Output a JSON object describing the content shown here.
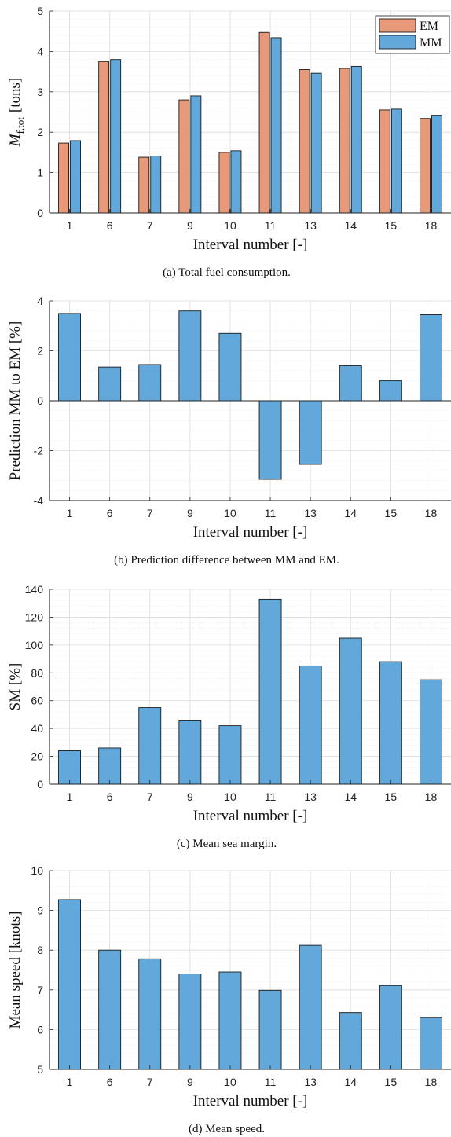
{
  "colors": {
    "em": "#E8997A",
    "mm": "#62A8DA",
    "grid_major": "#dcdcdc",
    "grid_minor": "#ececec"
  },
  "chart_data": [
    {
      "id": "a",
      "type": "bar",
      "categories": [
        "1",
        "6",
        "7",
        "9",
        "10",
        "11",
        "13",
        "14",
        "15",
        "18"
      ],
      "series": [
        {
          "name": "EM",
          "values": [
            1.73,
            3.75,
            1.38,
            2.8,
            1.5,
            4.47,
            3.55,
            3.58,
            2.55,
            2.34
          ]
        },
        {
          "name": "MM",
          "values": [
            1.79,
            3.8,
            1.41,
            2.9,
            1.54,
            4.34,
            3.46,
            3.63,
            2.57,
            2.42
          ]
        }
      ],
      "ylabel": "M_f,tot [tons]",
      "ylabel_main": "M",
      "ylabel_sub": "f,tot",
      "ylabel_rest": "[tons]",
      "xlabel": "Interval number [-]",
      "ylim": [
        0,
        5
      ],
      "yticks": [
        0,
        1,
        2,
        3,
        4,
        5
      ],
      "grid": true,
      "legend": "top-right",
      "caption": "(a)  Total fuel consumption."
    },
    {
      "id": "b",
      "type": "bar",
      "categories": [
        "1",
        "6",
        "7",
        "9",
        "10",
        "11",
        "13",
        "14",
        "15",
        "18"
      ],
      "series": [
        {
          "name": "",
          "values": [
            3.5,
            1.35,
            1.45,
            3.6,
            2.7,
            -3.15,
            -2.55,
            1.4,
            0.8,
            3.45
          ]
        }
      ],
      "ylabel": "Prediction MM to EM [%]",
      "xlabel": "Interval number [-]",
      "ylim": [
        -4,
        4
      ],
      "yticks": [
        -4,
        -2,
        0,
        2,
        4
      ],
      "grid": true,
      "caption": "(b)  Prediction difference between MM and EM."
    },
    {
      "id": "c",
      "type": "bar",
      "categories": [
        "1",
        "6",
        "7",
        "9",
        "10",
        "11",
        "13",
        "14",
        "15",
        "18"
      ],
      "series": [
        {
          "name": "",
          "values": [
            24,
            26,
            55,
            46,
            42,
            133,
            85,
            105,
            88,
            75
          ]
        }
      ],
      "ylabel": "SM [%]",
      "xlabel": "Interval number [-]",
      "ylim": [
        0,
        140
      ],
      "yticks": [
        0,
        20,
        40,
        60,
        80,
        100,
        120,
        140
      ],
      "grid": true,
      "caption": "(c)  Mean sea margin."
    },
    {
      "id": "d",
      "type": "bar",
      "categories": [
        "1",
        "6",
        "7",
        "9",
        "10",
        "11",
        "13",
        "14",
        "15",
        "18"
      ],
      "series": [
        {
          "name": "",
          "values": [
            9.27,
            8.0,
            7.78,
            7.4,
            7.45,
            6.99,
            8.12,
            6.43,
            7.11,
            6.31
          ]
        }
      ],
      "ylabel": "Mean speed [knots]",
      "xlabel": "Interval number [-]",
      "ylim": [
        5,
        10
      ],
      "yticks": [
        5,
        6,
        7,
        8,
        9,
        10
      ],
      "grid": true,
      "caption": "(d)  Mean speed."
    }
  ]
}
